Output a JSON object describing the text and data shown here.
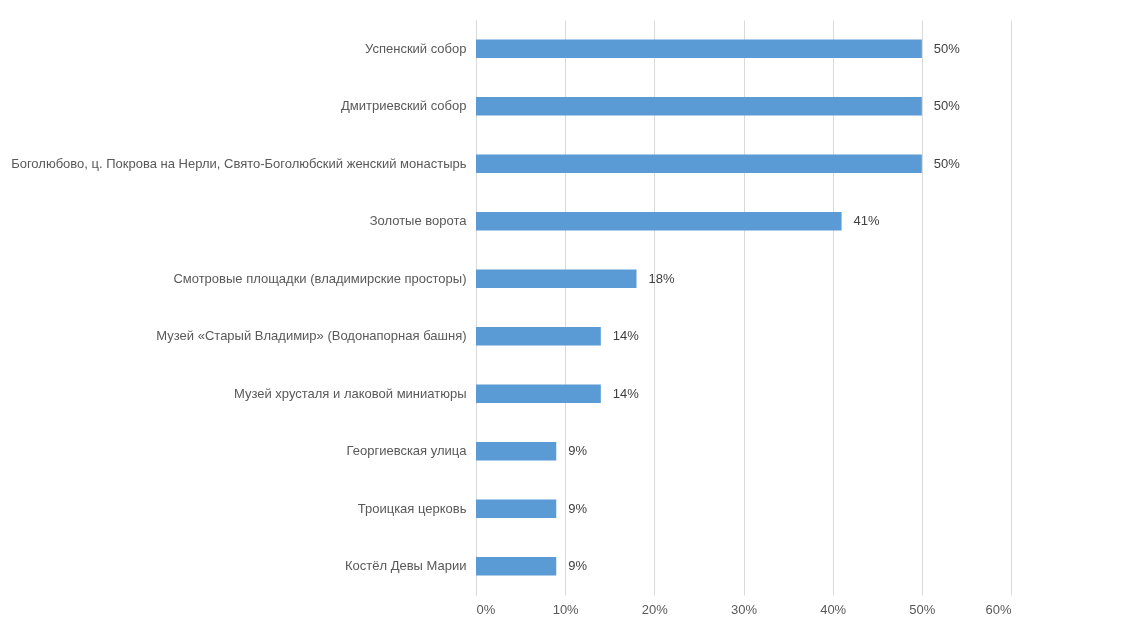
{
  "chart_data": {
    "type": "bar",
    "orientation": "horizontal",
    "categories": [
      "Успенский собор",
      "Дмитриевский собор",
      "Боголюбово, ц. Покрова на Нерли, Свято-Боголюбский женский монастырь",
      "Золотые ворота",
      "Смотровые площадки (владимирские просторы)",
      "Музей «Старый Владимир» (Водонапорная башня)",
      "Музей хрусталя и лаковой миниатюры",
      "Георгиевская улица",
      "Троицкая церковь",
      "Костёл Девы Марии"
    ],
    "values": [
      50,
      50,
      50,
      41,
      18,
      14,
      14,
      9,
      9,
      9
    ],
    "value_labels": [
      "50%",
      "50%",
      "50%",
      "41%",
      "18%",
      "14%",
      "14%",
      "9%",
      "9%",
      "9%"
    ],
    "color": "#5b9bd5",
    "xlim": [
      0,
      60
    ],
    "xticks": [
      {
        "value": 0,
        "label": "0%"
      },
      {
        "value": 10,
        "label": "10%"
      },
      {
        "value": 20,
        "label": "20%"
      },
      {
        "value": 30,
        "label": "30%"
      },
      {
        "value": 40,
        "label": "40%"
      },
      {
        "value": 50,
        "label": "50%"
      },
      {
        "value": 60,
        "label": "60%"
      }
    ],
    "grid": "x"
  }
}
